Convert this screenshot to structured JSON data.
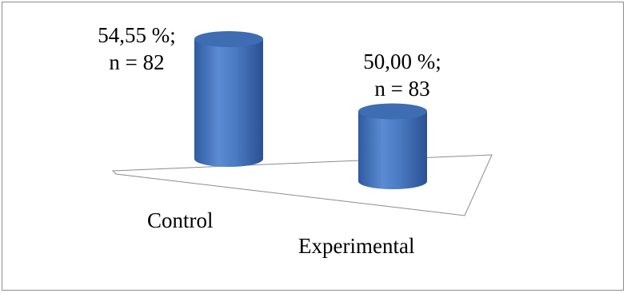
{
  "chart_data": {
    "type": "bar",
    "style": "3d-cylinder",
    "categories": [
      "Control",
      "Experimental"
    ],
    "values": [
      54.55,
      50.0
    ],
    "data_labels": [
      {
        "percent": "54,55 %;",
        "n": "n = 82"
      },
      {
        "percent": "50,00 %;",
        "n": "n = 83"
      }
    ],
    "title": "",
    "xlabel": "",
    "ylabel": "",
    "grid": false,
    "legend": "none",
    "colors": {
      "bar": "#4a7ac2",
      "bar_top": "#3e6db3",
      "floor_line": "#8c8c8c",
      "frame": "#8c8c8c"
    }
  }
}
